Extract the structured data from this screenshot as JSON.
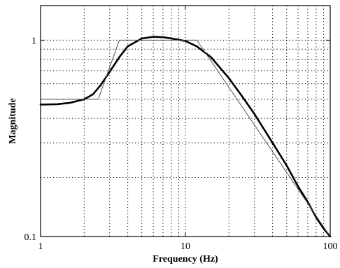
{
  "chart_data": {
    "type": "line",
    "title": "",
    "xlabel": "Frequency (Hz)",
    "ylabel": "Magnitude",
    "xscale": "log",
    "yscale": "log",
    "xlim": [
      1,
      100
    ],
    "ylim": [
      0.1,
      1.5
    ],
    "grid": true,
    "legend": "none",
    "x_ticks": [
      {
        "value": 1,
        "label": "1"
      },
      {
        "value": 10,
        "label": "10"
      },
      {
        "value": 100,
        "label": "100"
      }
    ],
    "y_ticks": [
      {
        "value": 0.1,
        "label": "0.1"
      },
      {
        "value": 1,
        "label": "1"
      }
    ],
    "series": [
      {
        "style": "thick",
        "color": "#000000",
        "x": [
          1,
          1.3,
          1.6,
          2,
          2.3,
          2.6,
          3,
          3.5,
          4,
          5,
          6,
          7,
          8,
          9,
          10,
          12,
          15,
          20,
          25,
          30,
          40,
          50,
          60,
          70,
          80,
          90,
          100
        ],
        "y": [
          0.47,
          0.472,
          0.48,
          0.5,
          0.53,
          0.59,
          0.69,
          0.82,
          0.93,
          1.02,
          1.04,
          1.035,
          1.02,
          1.005,
          0.99,
          0.93,
          0.82,
          0.64,
          0.51,
          0.42,
          0.3,
          0.23,
          0.18,
          0.15,
          0.125,
          0.11,
          0.1
        ]
      },
      {
        "style": "thin",
        "color": "#555555",
        "x": [
          1,
          2.5,
          3.5,
          12,
          100
        ],
        "y": [
          0.5,
          0.5,
          1.0,
          1.0,
          0.1
        ]
      }
    ]
  }
}
